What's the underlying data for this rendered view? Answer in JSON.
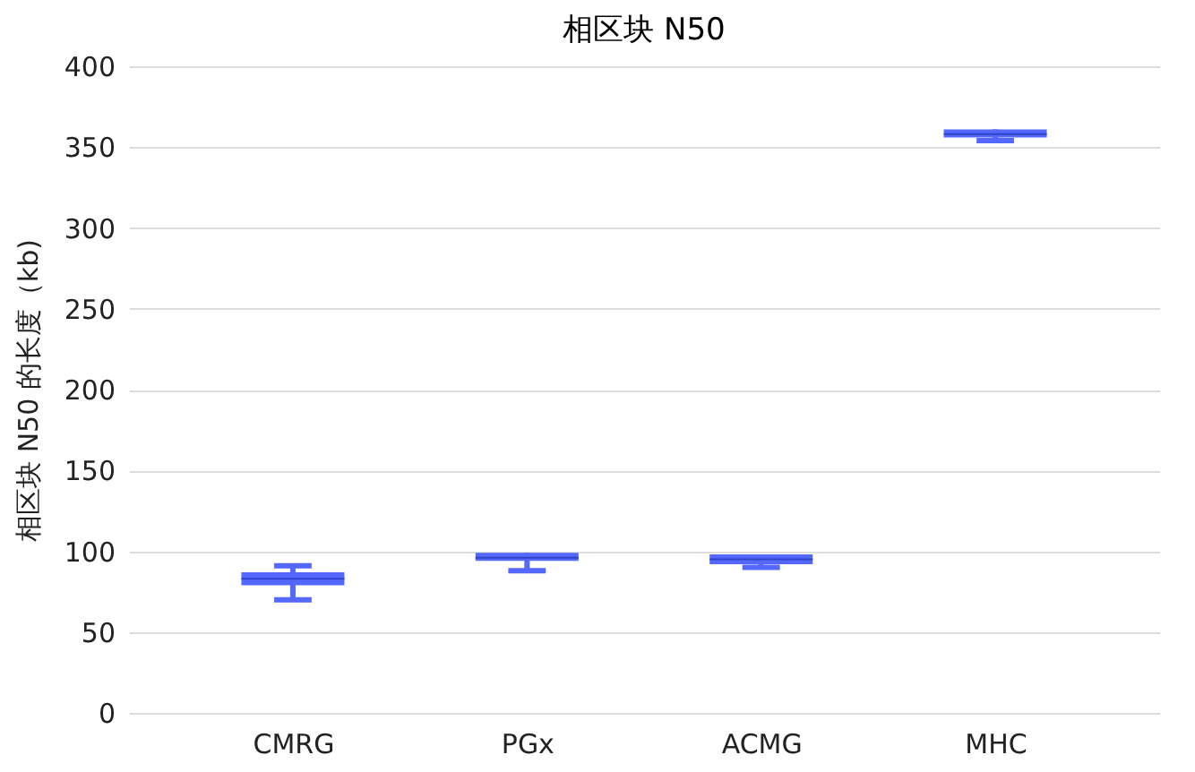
{
  "chart_data": {
    "type": "box",
    "title": "相区块 N50",
    "ylabel": "相区块 N50 的长度（kb)",
    "categories": [
      "CMRG",
      "PGx",
      "ACMG",
      "MHC"
    ],
    "color": "#5468ff",
    "boxes": [
      {
        "low": 70,
        "q1": 79,
        "median": 83,
        "q3": 87,
        "high": 91
      },
      {
        "low": 88,
        "q1": 94,
        "median": 96,
        "q3": 99,
        "high": 99
      },
      {
        "low": 90,
        "q1": 92,
        "median": 95,
        "q3": 98,
        "high": 98
      },
      {
        "low": 354,
        "q1": 356,
        "median": 358,
        "q3": 361,
        "high": 361
      }
    ],
    "ylim": [
      0,
      400
    ],
    "yticks": [
      0,
      50,
      100,
      150,
      200,
      250,
      300,
      350,
      400
    ],
    "grid": "y"
  }
}
